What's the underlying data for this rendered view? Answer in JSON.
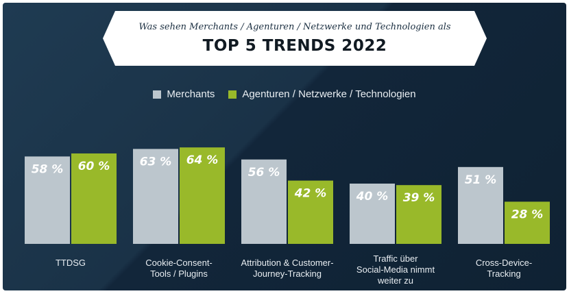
{
  "banner": {
    "subtitle": "Was sehen Merchants / Agenturen / Netzwerke und Technologien als",
    "title": "TOP 5 TRENDS 2022"
  },
  "chart_data": {
    "type": "bar",
    "categories": [
      "TTDSG",
      "Cookie-Consent-\nTools / Plugins",
      "Attribution & Customer-\nJourney-Tracking",
      "Traffic über\nSocial-Media nimmt\nweiter zu",
      "Cross-Device-\nTracking"
    ],
    "series": [
      {
        "name": "Merchants",
        "values": [
          58,
          63,
          56,
          40,
          51
        ],
        "labels": [
          "58 %",
          "63 %",
          "56 %",
          "40 %",
          "51 %"
        ],
        "color": "#bcc6cd"
      },
      {
        "name": "Agenturen / Netzwerke / Technologien",
        "values": [
          60,
          64,
          42,
          39,
          28
        ],
        "labels": [
          "60 %",
          "64 %",
          "42 %",
          "39 %",
          "28 %"
        ],
        "color": "#99b92a"
      }
    ],
    "title": "TOP 5 TRENDS 2022",
    "legend": "top-center",
    "grid": false
  },
  "colors": {
    "background": "#1a3247",
    "merchants": "#bcc6cd",
    "agencies": "#99b92a",
    "text": "#e9eef2"
  }
}
